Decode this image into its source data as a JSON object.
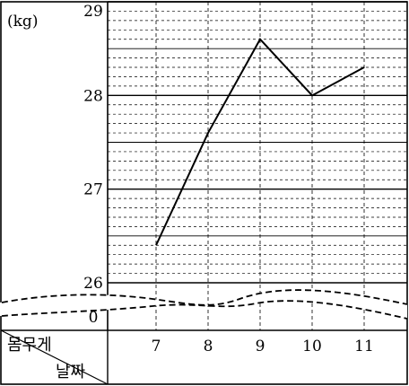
{
  "chart_data": {
    "type": "line",
    "unit_label": "(kg)",
    "x_header": "날짜",
    "y_header": "몸무게",
    "categories": [
      "7",
      "8",
      "9",
      "10",
      "11"
    ],
    "values": [
      26.4,
      27.6,
      28.6,
      28.0,
      28.3
    ],
    "ylim": [
      26,
      29
    ],
    "y_ticks": [
      "26",
      "27",
      "28",
      "29"
    ],
    "zero_label": "0",
    "y_axis_break": true,
    "grid": true,
    "minor_grid_step": 0.1
  }
}
